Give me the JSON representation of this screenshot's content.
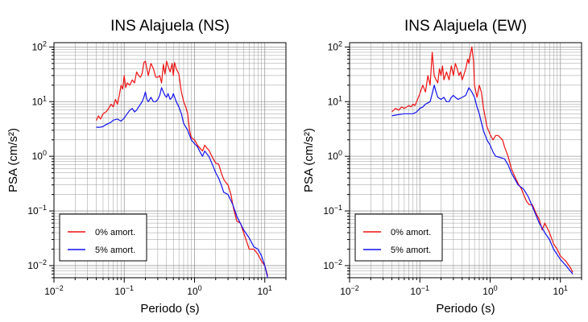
{
  "chart_data": [
    {
      "type": "line",
      "title": "INS Alajuela (NS)",
      "xlabel": "Periodo (s)",
      "ylabel": "PSA (cm/s²)",
      "xscale": "log",
      "yscale": "log",
      "xlim": [
        0.01,
        20
      ],
      "ylim": [
        0.006,
        120
      ],
      "grid": true,
      "legend_position": "bottom-left",
      "x_ticks": [
        {
          "value": 0.01,
          "base": "10",
          "exp": "−2"
        },
        {
          "value": 0.1,
          "base": "10",
          "exp": "−1"
        },
        {
          "value": 1,
          "base": "10",
          "exp": "0"
        },
        {
          "value": 10,
          "base": "10",
          "exp": "1"
        }
      ],
      "y_ticks": [
        {
          "value": 0.01,
          "base": "10",
          "exp": "−2"
        },
        {
          "value": 0.1,
          "base": "10",
          "exp": "−1"
        },
        {
          "value": 1,
          "base": "10",
          "exp": "0"
        },
        {
          "value": 10,
          "base": "10",
          "exp": "1"
        },
        {
          "value": 100,
          "base": "10",
          "exp": "2"
        }
      ],
      "series": [
        {
          "name": "0% amort.",
          "color": "#ee1111",
          "x": [
            0.04,
            0.043,
            0.046,
            0.05,
            0.055,
            0.06,
            0.065,
            0.07,
            0.075,
            0.08,
            0.085,
            0.09,
            0.095,
            0.1,
            0.105,
            0.11,
            0.12,
            0.13,
            0.14,
            0.15,
            0.16,
            0.17,
            0.18,
            0.19,
            0.2,
            0.21,
            0.22,
            0.24,
            0.26,
            0.28,
            0.3,
            0.32,
            0.34,
            0.36,
            0.38,
            0.4,
            0.42,
            0.45,
            0.48,
            0.5,
            0.52,
            0.55,
            0.6,
            0.65,
            0.7,
            0.75,
            0.8,
            0.85,
            0.9,
            1.0,
            1.1,
            1.2,
            1.3,
            1.4,
            1.5,
            1.6,
            1.8,
            2.0,
            2.2,
            2.4,
            2.6,
            2.8,
            3.0,
            3.3,
            3.6,
            4.0,
            4.5,
            5.0,
            5.5,
            6.0,
            7.0,
            8.0,
            9.0,
            10.0,
            11.0
          ],
          "y": [
            4.5,
            5.5,
            4.8,
            6.0,
            6.5,
            7.5,
            9.0,
            8.0,
            11.0,
            9.0,
            13.0,
            20.0,
            17.0,
            30.0,
            18.0,
            22.0,
            20.0,
            25.0,
            22.0,
            35.0,
            30.0,
            28.0,
            33.0,
            52.0,
            55.0,
            40.0,
            30.0,
            50.0,
            40.0,
            28.0,
            28.0,
            30.0,
            22.0,
            48.0,
            32.0,
            55.0,
            45.0,
            35.0,
            50.0,
            30.0,
            52.0,
            40.0,
            32.0,
            15.0,
            10.0,
            8.0,
            6.0,
            3.0,
            2.2,
            2.0,
            1.6,
            1.4,
            1.25,
            1.6,
            1.4,
            1.3,
            0.95,
            0.75,
            0.72,
            0.5,
            0.38,
            0.33,
            0.3,
            0.2,
            0.11,
            0.065,
            0.06,
            0.04,
            0.028,
            0.02,
            0.02,
            0.016,
            0.012,
            0.01,
            0.0065
          ]
        },
        {
          "name": "5% amort.",
          "color": "#1111ee",
          "x": [
            0.04,
            0.045,
            0.05,
            0.055,
            0.06,
            0.065,
            0.07,
            0.08,
            0.09,
            0.1,
            0.11,
            0.12,
            0.13,
            0.14,
            0.15,
            0.16,
            0.17,
            0.18,
            0.19,
            0.2,
            0.21,
            0.22,
            0.24,
            0.26,
            0.28,
            0.3,
            0.32,
            0.34,
            0.36,
            0.38,
            0.4,
            0.42,
            0.45,
            0.48,
            0.5,
            0.55,
            0.6,
            0.65,
            0.7,
            0.8,
            0.9,
            1.0,
            1.1,
            1.2,
            1.3,
            1.4,
            1.5,
            1.6,
            1.8,
            2.0,
            2.2,
            2.4,
            2.6,
            3.0,
            3.5,
            4.0,
            5.0,
            6.0,
            7.0,
            8.0,
            9.0,
            10.0,
            11.0
          ],
          "y": [
            3.4,
            3.4,
            3.5,
            3.8,
            4.0,
            4.2,
            4.6,
            4.8,
            4.4,
            5.0,
            6.0,
            7.0,
            7.5,
            6.5,
            7.0,
            8.0,
            9.0,
            10.0,
            12.0,
            15.0,
            11.0,
            10.0,
            12.0,
            10.0,
            10.0,
            11.0,
            13.0,
            18.0,
            15.0,
            13.0,
            12.0,
            14.0,
            11.0,
            12.0,
            14.0,
            10.0,
            8.0,
            6.0,
            4.0,
            3.0,
            2.0,
            1.7,
            1.5,
            1.2,
            1.0,
            1.25,
            1.1,
            1.0,
            0.7,
            0.5,
            0.4,
            0.3,
            0.22,
            0.2,
            0.13,
            0.08,
            0.045,
            0.032,
            0.022,
            0.02,
            0.015,
            0.01,
            0.006
          ]
        }
      ]
    },
    {
      "type": "line",
      "title": "INS Alajuela (EW)",
      "xlabel": "Periodo (s)",
      "ylabel": "PSA (cm/s²)",
      "xscale": "log",
      "yscale": "log",
      "xlim": [
        0.01,
        20
      ],
      "ylim": [
        0.006,
        120
      ],
      "grid": true,
      "legend_position": "bottom-left",
      "x_ticks": [
        {
          "value": 0.01,
          "base": "10",
          "exp": "−2"
        },
        {
          "value": 0.1,
          "base": "10",
          "exp": "−1"
        },
        {
          "value": 1,
          "base": "10",
          "exp": "0"
        },
        {
          "value": 10,
          "base": "10",
          "exp": "1"
        }
      ],
      "y_ticks": [
        {
          "value": 0.01,
          "base": "10",
          "exp": "−2"
        },
        {
          "value": 0.1,
          "base": "10",
          "exp": "−1"
        },
        {
          "value": 1,
          "base": "10",
          "exp": "0"
        },
        {
          "value": 10,
          "base": "10",
          "exp": "1"
        },
        {
          "value": 100,
          "base": "10",
          "exp": "2"
        }
      ],
      "series": [
        {
          "name": "0% amort.",
          "color": "#ee1111",
          "x": [
            0.04,
            0.045,
            0.05,
            0.055,
            0.06,
            0.065,
            0.07,
            0.075,
            0.08,
            0.085,
            0.09,
            0.1,
            0.11,
            0.12,
            0.13,
            0.14,
            0.15,
            0.16,
            0.17,
            0.18,
            0.19,
            0.2,
            0.21,
            0.22,
            0.24,
            0.26,
            0.28,
            0.3,
            0.32,
            0.34,
            0.36,
            0.38,
            0.4,
            0.42,
            0.45,
            0.48,
            0.5,
            0.52,
            0.55,
            0.58,
            0.6,
            0.65,
            0.7,
            0.75,
            0.8,
            0.9,
            1.0,
            1.1,
            1.2,
            1.3,
            1.5,
            1.6,
            1.8,
            2.0,
            2.2,
            2.5,
            2.8,
            3.0,
            3.3,
            3.6,
            4.0,
            4.5,
            5.0,
            5.5,
            6.0,
            7.0,
            8.0,
            9.0,
            10.0,
            12.0,
            14.0,
            15.0
          ],
          "y": [
            6.5,
            7.5,
            7.0,
            8.0,
            7.5,
            8.0,
            8.5,
            8.0,
            9.0,
            8.5,
            10.0,
            14.0,
            20.0,
            15.0,
            30.0,
            20.0,
            80.0,
            30.0,
            25.0,
            22.0,
            40.0,
            30.0,
            45.0,
            25.0,
            35.0,
            25.0,
            45.0,
            30.0,
            50.0,
            40.0,
            30.0,
            35.0,
            25.0,
            30.0,
            40.0,
            60.0,
            50.0,
            70.0,
            100.0,
            55.0,
            20.0,
            12.0,
            20.0,
            15.0,
            8.0,
            3.5,
            2.5,
            2.0,
            2.4,
            2.4,
            2.0,
            1.5,
            1.0,
            0.6,
            0.45,
            0.32,
            0.25,
            0.2,
            0.15,
            0.13,
            0.13,
            0.09,
            0.07,
            0.045,
            0.06,
            0.04,
            0.025,
            0.02,
            0.015,
            0.012,
            0.009,
            0.0075
          ]
        },
        {
          "name": "5% amort.",
          "color": "#1111ee",
          "x": [
            0.04,
            0.05,
            0.06,
            0.07,
            0.08,
            0.09,
            0.1,
            0.11,
            0.12,
            0.13,
            0.14,
            0.15,
            0.16,
            0.17,
            0.18,
            0.2,
            0.22,
            0.24,
            0.26,
            0.28,
            0.3,
            0.32,
            0.35,
            0.4,
            0.45,
            0.5,
            0.55,
            0.6,
            0.65,
            0.7,
            0.8,
            0.9,
            1.0,
            1.1,
            1.2,
            1.4,
            1.6,
            1.8,
            2.0,
            2.2,
            2.5,
            3.0,
            3.5,
            4.0,
            5.0,
            6.0,
            7.0,
            8.0,
            10.0,
            12.0,
            15.0
          ],
          "y": [
            5.5,
            5.8,
            6.0,
            6.0,
            6.0,
            6.5,
            7.5,
            8.0,
            9.0,
            9.5,
            10.0,
            14.0,
            20.0,
            15.0,
            12.0,
            11.0,
            12.0,
            10.0,
            10.0,
            12.0,
            13.0,
            12.0,
            11.0,
            12.0,
            13.0,
            18.0,
            15.0,
            12.0,
            8.0,
            6.0,
            3.0,
            2.0,
            1.6,
            1.2,
            1.0,
            0.95,
            0.9,
            0.7,
            0.5,
            0.4,
            0.3,
            0.25,
            0.18,
            0.12,
            0.06,
            0.04,
            0.03,
            0.02,
            0.013,
            0.01,
            0.007
          ]
        }
      ]
    }
  ]
}
